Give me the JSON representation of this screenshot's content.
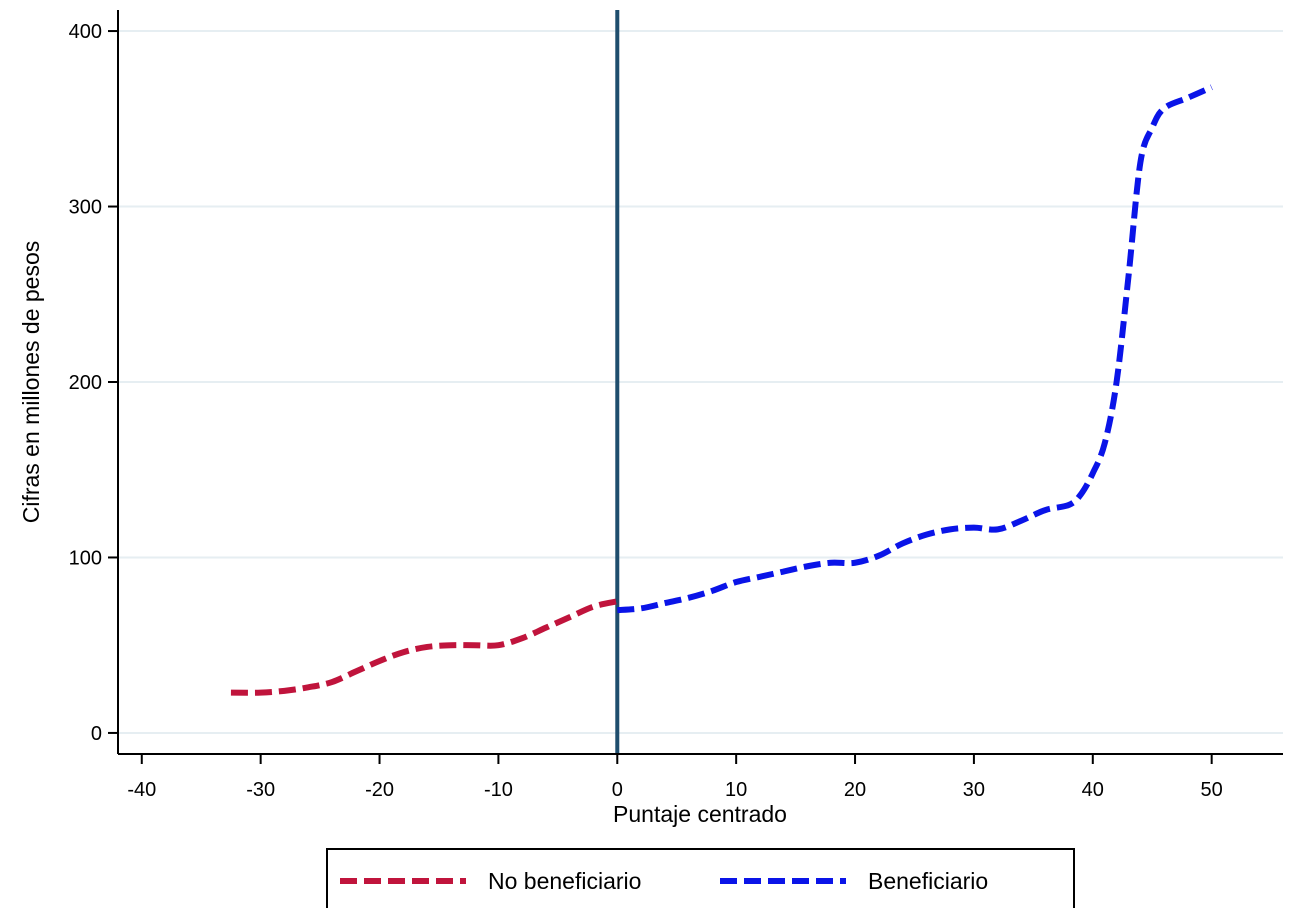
{
  "chart_data": {
    "type": "line",
    "title": "",
    "xlabel": "Puntaje centrado",
    "ylabel": "Cifras en millones de pesos",
    "xlim": [
      -42,
      56
    ],
    "ylim": [
      -12,
      412
    ],
    "xticks": [
      -40,
      -30,
      -20,
      -10,
      0,
      10,
      20,
      30,
      40,
      50
    ],
    "xtick_labels": [
      "-40",
      "-30",
      "-20",
      "-10",
      "0",
      "10",
      "20",
      "30",
      "40",
      "50"
    ],
    "yticks": [
      0,
      100,
      200,
      300,
      400
    ],
    "ytick_labels": [
      "0",
      "100",
      "200",
      "300",
      "400"
    ],
    "grid": "horizontal",
    "cutoff_line": {
      "x": 0,
      "color": "#1f4e6e"
    },
    "legend_position": "bottom",
    "series": [
      {
        "name": "No beneficiario",
        "color": "#c0143c",
        "style": "dashed",
        "x": [
          -32.5,
          -30,
          -28,
          -26,
          -24,
          -22,
          -20,
          -18,
          -16,
          -14,
          -12,
          -10,
          -8,
          -6,
          -4,
          -2,
          0
        ],
        "y": [
          23,
          23,
          24,
          26,
          29,
          35,
          41,
          46,
          49,
          50,
          50,
          50,
          54,
          60,
          66,
          72,
          75
        ]
      },
      {
        "name": "Beneficiario",
        "color": "#0a14e8",
        "style": "dashed",
        "x": [
          0,
          2,
          4,
          6,
          8,
          10,
          12,
          14,
          16,
          18,
          20,
          22,
          24,
          26,
          28,
          30,
          32,
          34,
          36,
          38,
          39,
          40,
          41,
          42,
          43,
          44,
          45,
          46,
          48,
          50
        ],
        "y": [
          70,
          71,
          74,
          77,
          81,
          86,
          89,
          92,
          95,
          97,
          97,
          101,
          108,
          113,
          116,
          117,
          116,
          121,
          127,
          130,
          136,
          148,
          165,
          200,
          260,
          325,
          345,
          356,
          362,
          368
        ]
      }
    ]
  }
}
